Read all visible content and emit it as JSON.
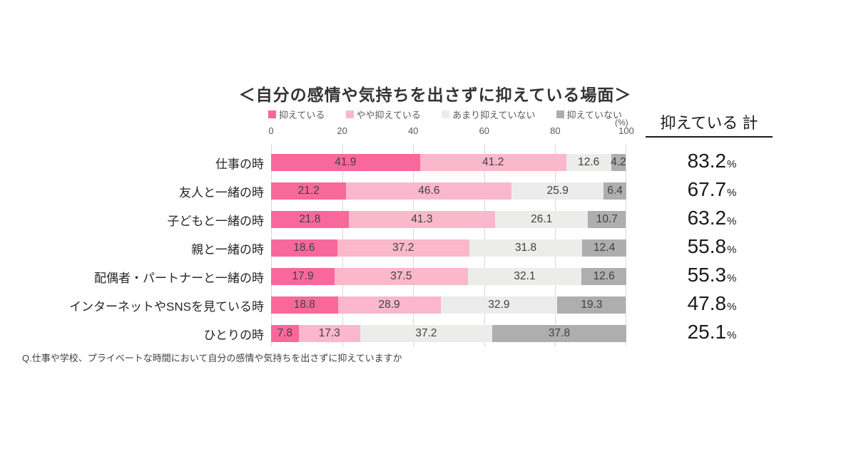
{
  "title": "＜自分の感情や気持ちを出さずに抑えている場面＞",
  "footnote": "Q.仕事や学校、プライベートな時間において自分の感情や気持ちを出さずに抑えていますか",
  "summary": {
    "header": "抑えている 計",
    "unit": "%"
  },
  "axis": {
    "percent_label": "(%)",
    "ticks": [
      "0",
      "20",
      "40",
      "60",
      "80",
      "100"
    ]
  },
  "colors": {
    "suppressing": "#f9689b",
    "somewhat_suppressing": "#fbb7cc",
    "not_much_suppressing": "#ececeb",
    "not_suppressing": "#aeaeae",
    "gridline": "#d9d9d9"
  },
  "chart_data": {
    "type": "bar",
    "stacked": true,
    "orientation": "horizontal",
    "xlim": [
      0,
      100
    ],
    "grid": true,
    "legend_position": "top",
    "title": "＜自分の感情や気持ちを出さずに抑えている場面＞",
    "categories": [
      "仕事の時",
      "友人と一緒の時",
      "子どもと一緒の時",
      "親と一緒の時",
      "配偶者・パートナーと一緒の時",
      "インターネットやSNSを見ている時",
      "ひとりの時"
    ],
    "series": [
      {
        "name": "抑えている",
        "color": "#f9689b",
        "values": [
          41.9,
          21.2,
          21.8,
          18.6,
          17.9,
          18.8,
          7.8
        ]
      },
      {
        "name": "やや抑えている",
        "color": "#fbb7cc",
        "values": [
          41.2,
          46.6,
          41.3,
          37.2,
          37.5,
          28.9,
          17.3
        ]
      },
      {
        "name": "あまり抑えていない",
        "color": "#ececeb",
        "values": [
          12.6,
          25.9,
          26.1,
          31.8,
          32.1,
          32.9,
          37.2
        ]
      },
      {
        "name": "抑えていない",
        "color": "#aeaeae",
        "values": [
          4.2,
          6.4,
          10.7,
          12.4,
          12.6,
          19.3,
          37.8
        ]
      }
    ],
    "totals": [
      "83.2",
      "67.7",
      "63.2",
      "55.8",
      "55.3",
      "47.8",
      "25.1"
    ]
  }
}
